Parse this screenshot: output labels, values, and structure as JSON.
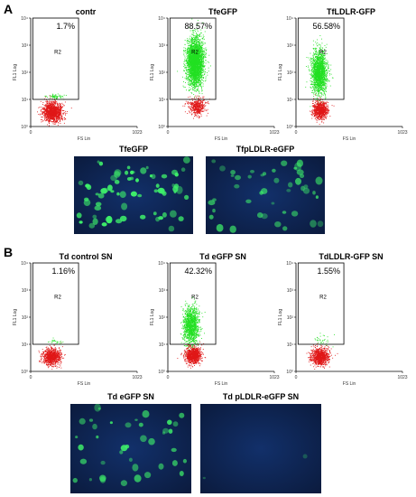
{
  "panels": {
    "a": "A",
    "b": "B"
  },
  "colors": {
    "positive": "#22e022",
    "negative": "#e01818",
    "micro_bg": "#0b1b3e",
    "micro_cell": "#3ef06a"
  },
  "chart_data": [
    {
      "type": "scatter",
      "title": "contr",
      "xlabel": "FS Lin",
      "ylabel": "FL1 Log",
      "xlim": [
        0,
        1023
      ],
      "ylim_log": [
        1,
        10000
      ],
      "xticks": [
        "0",
        "1023"
      ],
      "yticks": [
        "10⁰",
        "10¹",
        "10²",
        "10³",
        "10⁴"
      ],
      "gate": {
        "name": "R2",
        "percent": "1.7%",
        "x_range": [
          20,
          460
        ],
        "y_range": [
          10,
          10000
        ]
      },
      "populations": [
        {
          "color": "negative",
          "x_center": 210,
          "x_spread": 95,
          "y_center_log": 0.55,
          "y_spread_log": 0.35,
          "density": 1400
        },
        {
          "color": "positive",
          "x_center": 230,
          "x_spread": 90,
          "y_center_log": 1.12,
          "y_spread_log": 0.09,
          "density": 60
        }
      ]
    },
    {
      "type": "scatter",
      "title": "TfeGFP",
      "xlabel": "FS Lin",
      "ylabel": "FL1 Log",
      "xlim": [
        0,
        1023
      ],
      "ylim_log": [
        1,
        10000
      ],
      "xticks": [
        "0",
        "1023"
      ],
      "yticks": [
        "10⁰",
        "10¹",
        "10²",
        "10³",
        "10⁴"
      ],
      "gate": {
        "name": "R2",
        "percent": "88.57%",
        "x_range": [
          20,
          460
        ],
        "y_range": [
          10,
          10000
        ]
      },
      "populations": [
        {
          "color": "positive",
          "x_center": 260,
          "x_spread": 80,
          "y_center_log": 2.4,
          "y_spread_log": 0.85,
          "density": 3200
        },
        {
          "color": "negative",
          "x_center": 280,
          "x_spread": 80,
          "y_center_log": 0.75,
          "y_spread_log": 0.3,
          "density": 500
        }
      ]
    },
    {
      "type": "scatter",
      "title": "TfLDLR-GFP",
      "xlabel": "FS Lin",
      "ylabel": "FL1 Log",
      "xlim": [
        0,
        1023
      ],
      "ylim_log": [
        1,
        10000
      ],
      "xticks": [
        "0",
        "1023"
      ],
      "yticks": [
        "10⁰",
        "10¹",
        "10²",
        "10³",
        "10⁴"
      ],
      "gate": {
        "name": "R2",
        "percent": "56.58%",
        "x_range": [
          20,
          460
        ],
        "y_range": [
          10,
          10000
        ]
      },
      "populations": [
        {
          "color": "positive",
          "x_center": 220,
          "x_spread": 75,
          "y_center_log": 2.0,
          "y_spread_log": 0.8,
          "density": 1800
        },
        {
          "color": "negative",
          "x_center": 230,
          "x_spread": 70,
          "y_center_log": 0.6,
          "y_spread_log": 0.3,
          "density": 900
        }
      ]
    },
    {
      "type": "scatter",
      "title": "Td control SN",
      "xlabel": "FS Lin",
      "ylabel": "FL1 Log",
      "xlim": [
        0,
        1023
      ],
      "ylim_log": [
        1,
        10000
      ],
      "xticks": [
        "0",
        "1023"
      ],
      "yticks": [
        "10⁰",
        "10¹",
        "10²",
        "10³",
        "10⁴"
      ],
      "gate": {
        "name": "R2",
        "percent": "1.16%",
        "x_range": [
          20,
          460
        ],
        "y_range": [
          10,
          10000
        ]
      },
      "populations": [
        {
          "color": "negative",
          "x_center": 200,
          "x_spread": 85,
          "y_center_log": 0.55,
          "y_spread_log": 0.3,
          "density": 1000
        },
        {
          "color": "positive",
          "x_center": 220,
          "x_spread": 80,
          "y_center_log": 1.12,
          "y_spread_log": 0.1,
          "density": 25
        }
      ]
    },
    {
      "type": "scatter",
      "title": "Td eGFP SN",
      "xlabel": "FS Lin",
      "ylabel": "FL1 Log",
      "xlim": [
        0,
        1023
      ],
      "ylim_log": [
        1,
        10000
      ],
      "xticks": [
        "0",
        "1023"
      ],
      "yticks": [
        "10⁰",
        "10¹",
        "10²",
        "10³",
        "10⁴"
      ],
      "gate": {
        "name": "R2",
        "percent": "42.32%",
        "x_range": [
          20,
          460
        ],
        "y_range": [
          10,
          10000
        ]
      },
      "populations": [
        {
          "color": "positive",
          "x_center": 220,
          "x_spread": 75,
          "y_center_log": 1.7,
          "y_spread_log": 0.7,
          "density": 1300
        },
        {
          "color": "negative",
          "x_center": 240,
          "x_spread": 75,
          "y_center_log": 0.6,
          "y_spread_log": 0.3,
          "density": 1000
        }
      ]
    },
    {
      "type": "scatter",
      "title": "TdLDLR-GFP SN",
      "xlabel": "FS Lin",
      "ylabel": "FL1 Log",
      "xlim": [
        0,
        1023
      ],
      "ylim_log": [
        1,
        10000
      ],
      "xticks": [
        "0",
        "1023"
      ],
      "yticks": [
        "10⁰",
        "10¹",
        "10²",
        "10³",
        "10⁴"
      ],
      "gate": {
        "name": "R2",
        "percent": "1.55%",
        "x_range": [
          20,
          460
        ],
        "y_range": [
          10,
          10000
        ]
      },
      "populations": [
        {
          "color": "negative",
          "x_center": 230,
          "x_spread": 85,
          "y_center_log": 0.55,
          "y_spread_log": 0.3,
          "density": 1000
        },
        {
          "color": "positive",
          "x_center": 250,
          "x_spread": 80,
          "y_center_log": 1.2,
          "y_spread_log": 0.2,
          "density": 35
        }
      ]
    }
  ],
  "micrographs": [
    {
      "title": "TfeGFP",
      "cells": 70,
      "brightness": 1.0
    },
    {
      "title": "TfpLDLR-eGFP",
      "cells": 45,
      "brightness": 0.75
    },
    {
      "title": "Td eGFP SN",
      "cells": 40,
      "brightness": 0.9
    },
    {
      "title": "Td pLDLR-eGFP SN",
      "cells": 2,
      "brightness": 0.3
    }
  ]
}
